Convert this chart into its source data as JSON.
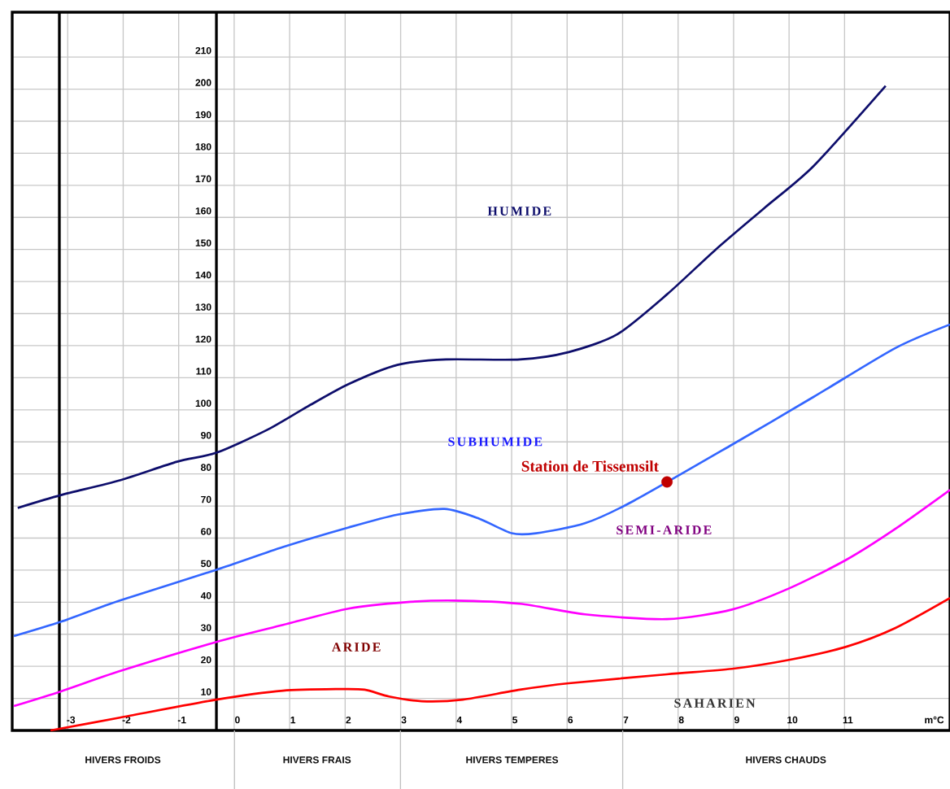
{
  "chart_data": {
    "type": "line",
    "xlabel": "m°C",
    "xlim": [
      -4,
      12.9
    ],
    "ylim": [
      0,
      224
    ],
    "xticks": [
      -3,
      -2,
      -1,
      0,
      1,
      2,
      3,
      4,
      5,
      6,
      7,
      8,
      9,
      10,
      11
    ],
    "yticks": [
      10,
      20,
      30,
      40,
      50,
      60,
      70,
      80,
      90,
      100,
      110,
      120,
      130,
      140,
      150,
      160,
      170,
      180,
      190,
      200,
      210
    ],
    "grid": true,
    "series": [
      {
        "color": "#0d0d6b",
        "marker": "none",
        "x": [
          -3.9,
          -3.12,
          -2.06,
          -1.03,
          -0.32,
          0.59,
          1.32,
          2.06,
          2.94,
          3.82,
          5.15,
          6.03,
          6.9,
          7.8,
          8.68,
          9.56,
          10.44,
          11.74
        ],
        "values": [
          69.4,
          73.4,
          78,
          83.8,
          86.6,
          93.7,
          101,
          108,
          114,
          115.7,
          115.7,
          118,
          123.5,
          136,
          150,
          163,
          176,
          201
        ]
      },
      {
        "color": "#3366ff",
        "marker": "none",
        "x": [
          -3.97,
          -3.12,
          -2.06,
          -0.32,
          0.88,
          2.06,
          2.94,
          3.79,
          4.41,
          5,
          5.44,
          6.32,
          7.2,
          8.97,
          10.44,
          11.91,
          12.9
        ],
        "values": [
          29.4,
          33.9,
          40.5,
          50.1,
          57.2,
          63.3,
          67.3,
          69.1,
          66.1,
          61.5,
          61.5,
          64.6,
          71.6,
          89.1,
          104,
          119.2,
          126.6
        ]
      },
      {
        "color": "#ff00ff",
        "marker": "none",
        "x": [
          -3.97,
          -3.12,
          -2.06,
          -0.32,
          0.88,
          2.06,
          3.09,
          3.97,
          5.15,
          6.32,
          7.8,
          8.97,
          10,
          11.03,
          11.91,
          12.9
        ],
        "values": [
          7.6,
          12.2,
          18.5,
          27.6,
          32.9,
          38,
          40,
          40.5,
          39.5,
          36.2,
          34.7,
          37.7,
          44.3,
          53.2,
          62.8,
          75
        ]
      },
      {
        "color": "#ff0000",
        "marker": "none",
        "x": [
          -3.31,
          -2.06,
          -0.32,
          0.88,
          1.91,
          2.35,
          2.79,
          3.38,
          4.12,
          5.15,
          6.03,
          7.8,
          8.97,
          10,
          11.03,
          11.91,
          12.9
        ],
        "values": [
          0,
          4,
          9.6,
          12.4,
          12.9,
          12.7,
          10.6,
          9.1,
          9.6,
          12.7,
          14.7,
          17.5,
          19.2,
          22,
          26.1,
          31.9,
          41.3
        ]
      },
      {
        "type": "scatter",
        "name": "Station de Tissemsilt",
        "color": "#c00000",
        "marker": "circle",
        "x": [
          7.8
        ],
        "values": [
          77.5
        ]
      }
    ],
    "ref_lines": [
      {
        "axis": "x",
        "value": -3.15
      },
      {
        "axis": "x",
        "value": -0.32
      }
    ],
    "annotations": [
      "HUMIDE",
      "SUBHUMIDE",
      "SEMI-ARIDE",
      "ARIDE",
      "SAHARIEN",
      "HIVERS FROIDS",
      "HIVERS FRAIS",
      "HIVERS TEMPERES",
      "HIVERS CHAUDS"
    ]
  }
}
